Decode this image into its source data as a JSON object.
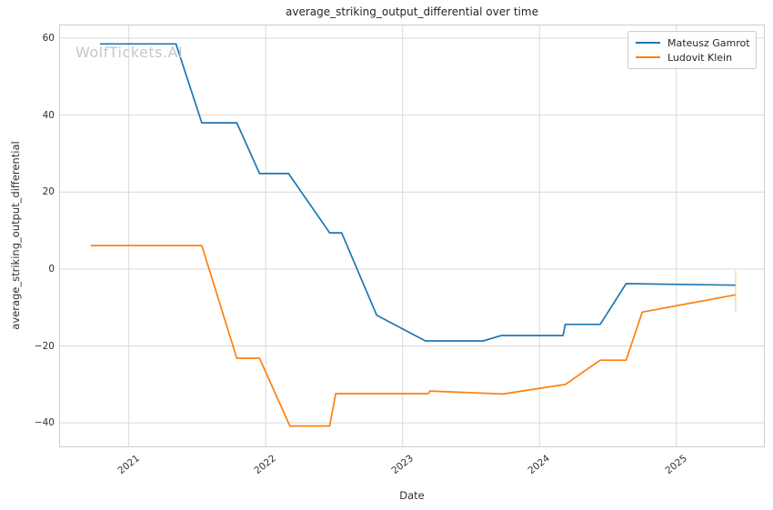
{
  "watermark": "WolfTickets.AI",
  "chart_data": {
    "type": "line",
    "title": "average_striking_output_differential over time",
    "xlabel": "Date",
    "ylabel": "average_striking_output_differential",
    "x_unit": "decimal_year",
    "xlim": [
      2020.497,
      2025.64
    ],
    "ylim": [
      -46.1,
      63.3
    ],
    "xtick_values": [
      2021,
      2022,
      2023,
      2024,
      2025
    ],
    "xtick_labels": [
      "2021",
      "2022",
      "2023",
      "2024",
      "2025"
    ],
    "ytick_values": [
      60,
      40,
      20,
      0,
      -20,
      -40
    ],
    "ytick_labels": [
      "60",
      "40",
      "20",
      "0",
      "−20",
      "−40"
    ],
    "grid": true,
    "grid_color": "#d9d9d9",
    "spine_color": "#cccccc",
    "legend_position": "upper right",
    "series": [
      {
        "name": "Mateusz Gamrot",
        "color": "#1f77b4",
        "points": [
          [
            2020.789,
            58.5
          ],
          [
            2021.344,
            58.5
          ],
          [
            2021.533,
            38.0
          ],
          [
            2021.789,
            38.0
          ],
          [
            2021.955,
            24.8
          ],
          [
            2022.167,
            24.8
          ],
          [
            2022.467,
            9.4
          ],
          [
            2022.555,
            9.4
          ],
          [
            2022.811,
            -12.0
          ],
          [
            2023.167,
            -18.7
          ],
          [
            2023.589,
            -18.7
          ],
          [
            2023.722,
            -17.3
          ],
          [
            2024.172,
            -17.3
          ],
          [
            2024.189,
            -14.4
          ],
          [
            2024.444,
            -14.4
          ],
          [
            2024.633,
            -3.8
          ],
          [
            2025.433,
            -4.2
          ]
        ]
      },
      {
        "name": "Ludovit Klein",
        "color": "#ff7f0e",
        "points": [
          [
            2020.722,
            6.1
          ],
          [
            2021.533,
            6.1
          ],
          [
            2021.789,
            -23.2
          ],
          [
            2021.955,
            -23.2
          ],
          [
            2022.177,
            -40.8
          ],
          [
            2022.467,
            -40.8
          ],
          [
            2022.511,
            -32.4
          ],
          [
            2023.189,
            -32.4
          ],
          [
            2023.2,
            -31.7
          ],
          [
            2023.733,
            -32.5
          ],
          [
            2024.189,
            -30.0
          ],
          [
            2024.444,
            -23.7
          ],
          [
            2024.633,
            -23.7
          ],
          [
            2024.751,
            -11.2
          ],
          [
            2025.433,
            -6.7
          ]
        ]
      }
    ],
    "end_marker": {
      "series": "Ludovit Klein",
      "x": 2025.433,
      "y_from": -0.5,
      "y_to": -11.2,
      "color": "#ff7f0e",
      "opacity": 0.3
    }
  }
}
